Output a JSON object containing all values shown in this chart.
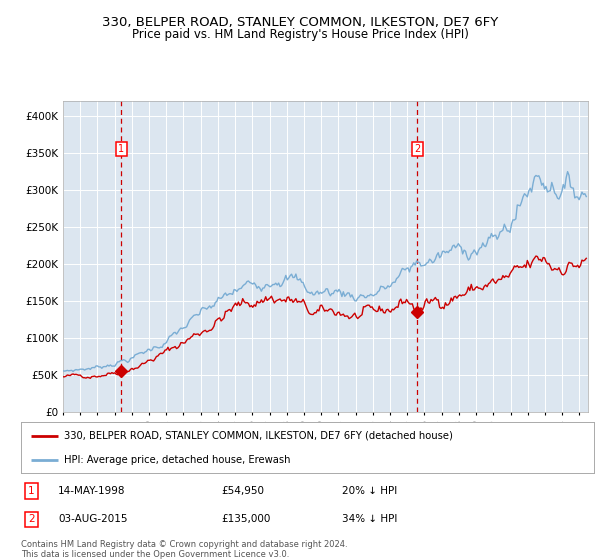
{
  "title": "330, BELPER ROAD, STANLEY COMMON, ILKESTON, DE7 6FY",
  "subtitle": "Price paid vs. HM Land Registry's House Price Index (HPI)",
  "bg_color": "#dce6f0",
  "hpi_color": "#7aadd4",
  "price_color": "#cc0000",
  "dashed_color": "#cc0000",
  "transaction1_date_x": 1998.37,
  "transaction1_price": 54950,
  "transaction2_date_x": 2015.58,
  "transaction2_price": 135000,
  "legend_line1": "330, BELPER ROAD, STANLEY COMMON, ILKESTON, DE7 6FY (detached house)",
  "legend_line2": "HPI: Average price, detached house, Erewash",
  "note1_date": "14-MAY-1998",
  "note1_price": "£54,950",
  "note1_pct": "20% ↓ HPI",
  "note2_date": "03-AUG-2015",
  "note2_price": "£135,000",
  "note2_pct": "34% ↓ HPI",
  "footer": "Contains HM Land Registry data © Crown copyright and database right 2024.\nThis data is licensed under the Open Government Licence v3.0.",
  "xmin": 1995,
  "xmax": 2025.5,
  "ymin": 0,
  "ymax": 420000,
  "yticks": [
    0,
    50000,
    100000,
    150000,
    200000,
    250000,
    300000,
    350000,
    400000
  ]
}
